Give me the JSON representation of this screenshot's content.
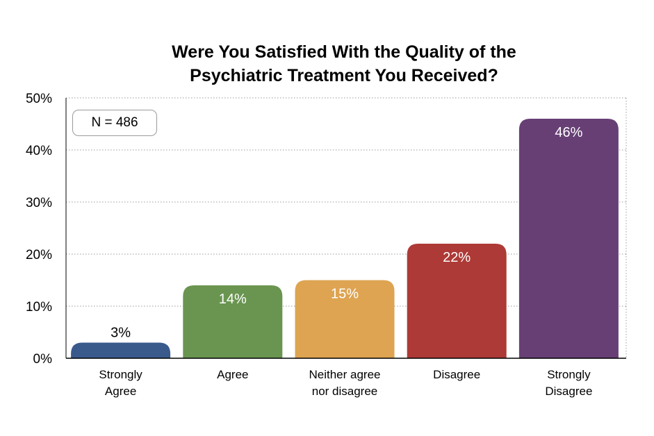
{
  "chart_data": {
    "type": "bar",
    "title_lines": [
      "Were You Satisfied With the Quality of the",
      "Psychiatric Treatment You Received?"
    ],
    "categories": [
      [
        "Strongly",
        "Agree"
      ],
      [
        "Agree"
      ],
      [
        "Neither agree",
        "nor disagree"
      ],
      [
        "Disagree"
      ],
      [
        "Strongly",
        "Disagree"
      ]
    ],
    "values": [
      3,
      14,
      15,
      22,
      46
    ],
    "data_labels": [
      "3%",
      "14%",
      "15%",
      "22%",
      "46%"
    ],
    "colors": [
      "#3a5a8c",
      "#6a9550",
      "#dea452",
      "#ad3a36",
      "#673f75"
    ],
    "ylim": [
      0,
      50
    ],
    "yticks": [
      "0%",
      "10%",
      "20%",
      "30%",
      "40%",
      "50%"
    ],
    "grid": true,
    "annotation": "N = 486"
  }
}
